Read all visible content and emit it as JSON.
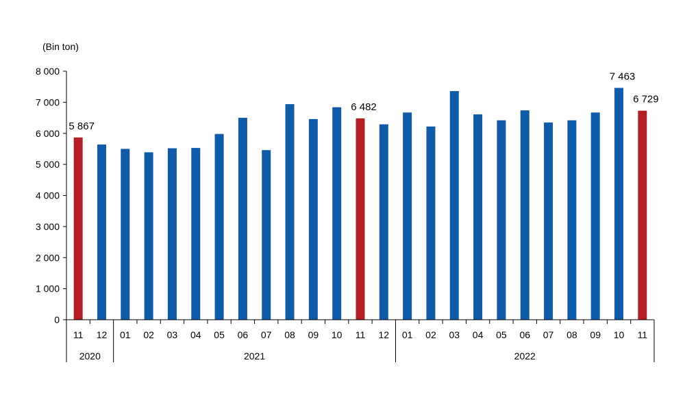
{
  "chart_data": {
    "type": "bar",
    "unit_label": "(Bin ton)",
    "yticks": [
      "0",
      "1 000",
      "2 000",
      "3 000",
      "4 000",
      "5 000",
      "6 000",
      "7 000",
      "8 000"
    ],
    "ylim": [
      0,
      8000
    ],
    "categories": [
      "11",
      "12",
      "01",
      "02",
      "03",
      "04",
      "05",
      "06",
      "07",
      "08",
      "09",
      "10",
      "11",
      "12",
      "01",
      "02",
      "03",
      "04",
      "05",
      "06",
      "07",
      "08",
      "09",
      "10",
      "11"
    ],
    "values": [
      5867,
      5640,
      5500,
      5390,
      5520,
      5530,
      5980,
      6500,
      5460,
      6940,
      6460,
      6840,
      6482,
      6290,
      6670,
      6220,
      7360,
      6610,
      6420,
      6740,
      6350,
      6420,
      6670,
      7463,
      6729
    ],
    "highlighted": [
      true,
      false,
      false,
      false,
      false,
      false,
      false,
      false,
      false,
      false,
      false,
      false,
      true,
      false,
      false,
      false,
      false,
      false,
      false,
      false,
      false,
      false,
      false,
      false,
      true
    ],
    "data_labels": [
      "5 867",
      "",
      "",
      "",
      "",
      "",
      "",
      "",
      "",
      "",
      "",
      "",
      "6 482",
      "",
      "",
      "",
      "",
      "",
      "",
      "",
      "",
      "",
      "",
      "7 463",
      "6 729"
    ],
    "years": [
      {
        "label": "2020",
        "start": 0,
        "end": 1
      },
      {
        "label": "2021",
        "start": 2,
        "end": 13
      },
      {
        "label": "2022",
        "start": 14,
        "end": 24
      }
    ],
    "colors": {
      "normal": "#0F5BA7",
      "highlight": "#B21F24"
    },
    "grid": false
  }
}
